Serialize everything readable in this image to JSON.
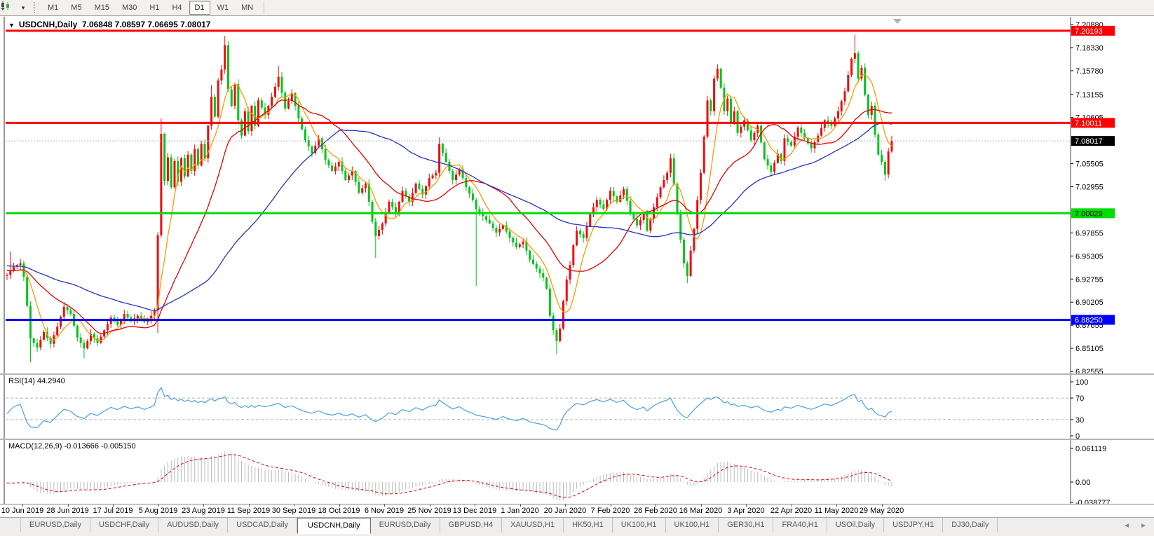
{
  "toolbar": {
    "chart_icon": "candles-icon",
    "dropdown": "▾",
    "timeframes": [
      "M1",
      "M5",
      "M15",
      "M30",
      "H1",
      "H4",
      "D1",
      "W1",
      "MN"
    ],
    "active_timeframe": "D1"
  },
  "chart": {
    "title": "USDCNH,Daily",
    "ohlc": "7.06848 7.08597 7.06695 7.08017",
    "dropdown_triangle": "▼"
  },
  "chart_data": {
    "type": "candlestick",
    "symbol": "USDCNH",
    "timeframe": "Daily",
    "current_bar": {
      "open": "7.06848",
      "high": "7.08597",
      "low": "7.06695",
      "close": "7.08017"
    },
    "colors": {
      "bull": "#ee0d0d",
      "bear": "#00c41a",
      "ma_fast": "#ff9900",
      "ma_mid": "#e60000",
      "ma_slow": "#2433c4",
      "rsi_line": "#4a9fe8",
      "macd_hist": "#b9b9b9",
      "macd_signal": "#e00000",
      "hline_red": "#ff0000",
      "hline_green": "#00dd00",
      "hline_blue": "#0000ff",
      "cur_price_line": "#b5b5b5",
      "axis_line": "#4a4a4a",
      "level_dash": "#b5b5b5"
    },
    "price_axis_ticks": [
      "7.20880",
      "7.18330",
      "7.15780",
      "7.13155",
      "7.10605",
      "7.05505",
      "7.02955",
      "6.97855",
      "6.95305",
      "6.92755",
      "6.90205",
      "6.87655",
      "6.85105",
      "6.82555"
    ],
    "price_chips": [
      {
        "text": "7.20193",
        "bg": "#ff0000",
        "fg": "#ffffff"
      },
      {
        "text": "7.10011",
        "bg": "#ff0000",
        "fg": "#ffffff"
      },
      {
        "text": "7.08017",
        "bg": "#000000",
        "fg": "#ffffff"
      },
      {
        "text": "7.00029",
        "bg": "#00dd00",
        "fg": "#000000"
      },
      {
        "text": "6.88250",
        "bg": "#0000ff",
        "fg": "#ffffff"
      }
    ],
    "hlines": [
      {
        "price": 7.20193,
        "color": "#ff0000",
        "width": 3
      },
      {
        "price": 7.10011,
        "color": "#ff0000",
        "width": 3
      },
      {
        "price": 7.00029,
        "color": "#00dd00",
        "width": 3
      },
      {
        "price": 6.8825,
        "color": "#0000ff",
        "width": 3
      }
    ],
    "current_price": 7.08017,
    "price_range": {
      "top": 7.21732,
      "bottom": 6.82325
    },
    "dates": [
      "10 Jun 2019",
      "28 Jun 2019",
      "17 Jul 2019",
      "5 Aug 2019",
      "23 Aug 2019",
      "11 Sep 2019",
      "30 Sep 2019",
      "18 Oct 2019",
      "6 Nov 2019",
      "25 Nov 2019",
      "13 Dec 2019",
      "1 Jan 2020",
      "20 Jan 2020",
      "7 Feb 2020",
      "26 Feb 2020",
      "16 Mar 2020",
      "3 Apr 2020",
      "22 Apr 2020",
      "11 May 2020",
      "29 May 2020"
    ],
    "candles": {
      "count": 265,
      "close_anchors": [
        [
          0,
          6.932
        ],
        [
          2,
          6.941
        ],
        [
          4,
          6.945
        ],
        [
          5,
          6.93
        ],
        [
          6,
          6.898
        ],
        [
          7,
          6.862
        ],
        [
          9,
          6.852
        ],
        [
          11,
          6.869
        ],
        [
          13,
          6.856
        ],
        [
          15,
          6.875
        ],
        [
          17,
          6.897
        ],
        [
          19,
          6.889
        ],
        [
          21,
          6.863
        ],
        [
          23,
          6.851
        ],
        [
          25,
          6.867
        ],
        [
          27,
          6.857
        ],
        [
          29,
          6.871
        ],
        [
          31,
          6.885
        ],
        [
          33,
          6.877
        ],
        [
          35,
          6.889
        ],
        [
          37,
          6.881
        ],
        [
          39,
          6.887
        ],
        [
          41,
          6.88
        ],
        [
          43,
          6.887
        ],
        [
          44,
          6.893
        ],
        [
          45,
          6.976
        ],
        [
          46,
          7.088
        ],
        [
          47,
          7.036
        ],
        [
          48,
          7.062
        ],
        [
          49,
          7.029
        ],
        [
          50,
          7.058
        ],
        [
          51,
          7.035
        ],
        [
          52,
          7.061
        ],
        [
          53,
          7.041
        ],
        [
          54,
          7.065
        ],
        [
          55,
          7.047
        ],
        [
          56,
          7.071
        ],
        [
          57,
          7.053
        ],
        [
          58,
          7.077
        ],
        [
          59,
          7.061
        ],
        [
          60,
          7.097
        ],
        [
          61,
          7.129
        ],
        [
          62,
          7.107
        ],
        [
          63,
          7.147
        ],
        [
          64,
          7.159
        ],
        [
          65,
          7.186
        ],
        [
          66,
          7.137
        ],
        [
          67,
          7.119
        ],
        [
          68,
          7.143
        ],
        [
          69,
          7.103
        ],
        [
          70,
          7.086
        ],
        [
          71,
          7.113
        ],
        [
          72,
          7.091
        ],
        [
          73,
          7.119
        ],
        [
          74,
          7.097
        ],
        [
          75,
          7.125
        ],
        [
          77,
          7.109
        ],
        [
          79,
          7.129
        ],
        [
          81,
          7.151
        ],
        [
          83,
          7.116
        ],
        [
          85,
          7.133
        ],
        [
          87,
          7.105
        ],
        [
          89,
          7.081
        ],
        [
          91,
          7.067
        ],
        [
          93,
          7.083
        ],
        [
          95,
          7.059
        ],
        [
          97,
          7.047
        ],
        [
          99,
          7.057
        ],
        [
          101,
          7.037
        ],
        [
          103,
          7.047
        ],
        [
          105,
          7.023
        ],
        [
          107,
          7.033
        ],
        [
          108,
          7.013
        ],
        [
          109,
          6.991
        ],
        [
          110,
          6.975
        ],
        [
          112,
          6.989
        ],
        [
          114,
          7.013
        ],
        [
          116,
          7.001
        ],
        [
          118,
          7.025
        ],
        [
          120,
          7.013
        ],
        [
          122,
          7.033
        ],
        [
          124,
          7.021
        ],
        [
          126,
          7.039
        ],
        [
          128,
          7.045
        ],
        [
          129,
          7.077
        ],
        [
          131,
          7.057
        ],
        [
          133,
          7.037
        ],
        [
          135,
          7.049
        ],
        [
          137,
          7.029
        ],
        [
          139,
          7.015
        ],
        [
          140,
          7.005
        ],
        [
          142,
          6.997
        ],
        [
          144,
          6.989
        ],
        [
          146,
          6.979
        ],
        [
          148,
          6.987
        ],
        [
          150,
          6.973
        ],
        [
          152,
          6.963
        ],
        [
          154,
          6.969
        ],
        [
          156,
          6.949
        ],
        [
          158,
          6.939
        ],
        [
          160,
          6.929
        ],
        [
          161,
          6.917
        ],
        [
          162,
          6.887
        ],
        [
          163,
          6.871
        ],
        [
          164,
          6.859
        ],
        [
          165,
          6.873
        ],
        [
          166,
          6.903
        ],
        [
          167,
          6.927
        ],
        [
          168,
          6.943
        ],
        [
          169,
          6.965
        ],
        [
          170,
          6.981
        ],
        [
          172,
          6.973
        ],
        [
          174,
          6.999
        ],
        [
          176,
          7.015
        ],
        [
          178,
          7.005
        ],
        [
          180,
          7.025
        ],
        [
          182,
          7.013
        ],
        [
          184,
          7.027
        ],
        [
          186,
          7.001
        ],
        [
          188,
          6.987
        ],
        [
          190,
          6.999
        ],
        [
          191,
          6.981
        ],
        [
          193,
          7.007
        ],
        [
          195,
          7.029
        ],
        [
          197,
          7.045
        ],
        [
          198,
          7.061
        ],
        [
          199,
          7.033
        ],
        [
          200,
          6.999
        ],
        [
          201,
          6.971
        ],
        [
          202,
          6.945
        ],
        [
          203,
          6.931
        ],
        [
          204,
          6.959
        ],
        [
          205,
          6.983
        ],
        [
          206,
          7.015
        ],
        [
          207,
          7.045
        ],
        [
          208,
          7.085
        ],
        [
          209,
          7.125
        ],
        [
          210,
          7.113
        ],
        [
          211,
          7.149
        ],
        [
          212,
          7.16
        ],
        [
          213,
          7.139
        ],
        [
          214,
          7.113
        ],
        [
          215,
          7.127
        ],
        [
          216,
          7.099
        ],
        [
          217,
          7.113
        ],
        [
          218,
          7.089
        ],
        [
          220,
          7.103
        ],
        [
          222,
          7.081
        ],
        [
          224,
          7.097
        ],
        [
          226,
          7.06
        ],
        [
          228,
          7.046
        ],
        [
          230,
          7.066
        ],
        [
          231,
          7.058
        ],
        [
          232,
          7.083
        ],
        [
          234,
          7.075
        ],
        [
          236,
          7.095
        ],
        [
          238,
          7.083
        ],
        [
          240,
          7.072
        ],
        [
          242,
          7.086
        ],
        [
          244,
          7.103
        ],
        [
          246,
          7.097
        ],
        [
          248,
          7.113
        ],
        [
          250,
          7.135
        ],
        [
          251,
          7.153
        ],
        [
          252,
          7.171
        ],
        [
          253,
          7.177
        ],
        [
          254,
          7.149
        ],
        [
          255,
          7.161
        ],
        [
          256,
          7.131
        ],
        [
          257,
          7.109
        ],
        [
          258,
          7.119
        ],
        [
          259,
          7.087
        ],
        [
          260,
          7.065
        ],
        [
          261,
          7.057
        ],
        [
          262,
          7.043
        ],
        [
          263,
          7.06848
        ],
        [
          264,
          7.08017
        ]
      ],
      "wick_overrides": {
        "1": {
          "h": 6.958
        },
        "7": {
          "l": 6.8355
        },
        "23": {
          "l": 6.84
        },
        "45": {
          "l": 6.868
        },
        "46": {
          "h": 7.105
        },
        "61": {
          "h": 7.142
        },
        "65": {
          "h": 7.1962
        },
        "81": {
          "h": 7.163
        },
        "110": {
          "l": 6.951
        },
        "129": {
          "h": 7.084
        },
        "140": {
          "l": 6.92
        },
        "164": {
          "l": 6.845
        },
        "198": {
          "h": 7.066
        },
        "203": {
          "l": 6.923
        },
        "212": {
          "h": 7.165
        },
        "253": {
          "h": 7.1977
        },
        "262": {
          "l": 7.036
        },
        "264": {
          "h": 7.08597,
          "l": 7.06695
        }
      }
    },
    "moving_averages": [
      {
        "period": 7,
        "color": "#ff9900"
      },
      {
        "period": 22,
        "color": "#e60000"
      },
      {
        "period": 55,
        "color": "#2433c4"
      }
    ],
    "rsi": {
      "label": "RSI(14) 44.2940",
      "period": 14,
      "current": "44.2940",
      "axis_labels": [
        "100",
        "70",
        "30",
        "0"
      ],
      "level_lines": [
        70,
        30
      ]
    },
    "macd": {
      "label": "MACD(12,26,9) -0.013666 -0.005150",
      "fast": 12,
      "slow": 26,
      "signal": 9,
      "current_main": "-0.013666",
      "current_signal": "-0.005150",
      "axis_max": "0.061119",
      "axis_zero": "0.00",
      "axis_min": "-0.038777"
    }
  },
  "tabs": {
    "items": [
      "EURUSD,Daily",
      "USDCHF,Daily",
      "AUDUSD,Daily",
      "USDCAD,Daily",
      "USDCNH,Daily",
      "EURUSD,Daily",
      "GBPUSD,H4",
      "XAUUSD,H1",
      "HK50,H1",
      "UK100,H1",
      "UK100,H1",
      "GER30,H1",
      "FRA40,H1",
      "USOil,Daily",
      "USDJPY,H1",
      "DJ30,Daily"
    ],
    "active_index": 4,
    "scroll_left": "◄",
    "scroll_right": "►"
  }
}
